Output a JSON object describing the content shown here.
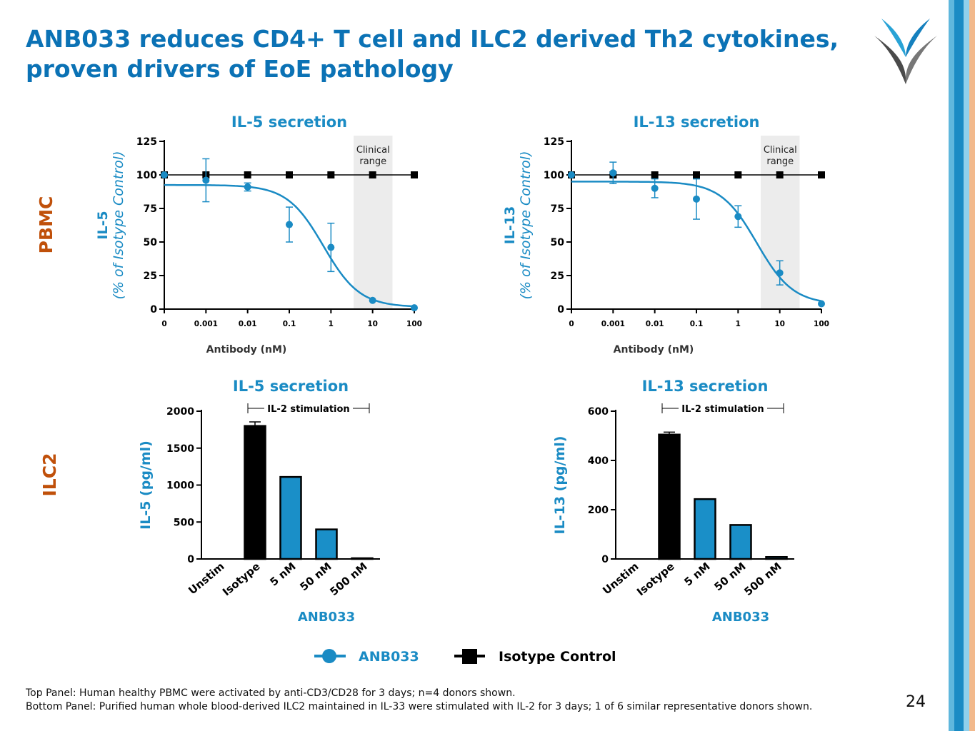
{
  "title_lines": [
    "ANB033 reduces CD4+ T cell and ILC2 derived Th2 cytokines,",
    "proven drivers of EoE pathology"
  ],
  "colors": {
    "title": "#0b72b5",
    "accent": "#1a8bc4",
    "row_label": "#c0500a",
    "bar_blue": "#1a8fc8",
    "black": "#000000",
    "clinical_band": "#ececec"
  },
  "row_labels": {
    "pbmc": "PBMC",
    "ilc2": "ILC2"
  },
  "chart_data": [
    {
      "type": "line",
      "title": "IL-5 secretion",
      "ylabel": "IL-5",
      "ylabel_sub": "(% of Isotype Control)",
      "xlabel": "Antibody (nM)",
      "x_tick_labels": [
        "0",
        "0.001",
        "0.01",
        "0.1",
        "1",
        "10",
        "100"
      ],
      "y_ticks": [
        0,
        25,
        50,
        75,
        100,
        125
      ],
      "ylim": [
        0,
        125
      ],
      "clinical_range": {
        "label_lines": [
          "Clinical",
          "range"
        ],
        "x_from": 3.5,
        "x_to": 30
      },
      "series": [
        {
          "name": "ANB033",
          "x": [
            0,
            0.001,
            0.01,
            0.1,
            1,
            10,
            100
          ],
          "y": [
            100,
            96,
            91,
            63,
            46,
            6.5,
            1
          ],
          "err": [
            0,
            16,
            3,
            13,
            18,
            0,
            0
          ]
        },
        {
          "name": "Isotype Control",
          "x": [
            0,
            0.001,
            0.01,
            0.1,
            1,
            10,
            100
          ],
          "y": [
            100,
            100,
            100,
            100,
            100,
            100,
            100
          ]
        }
      ],
      "fit": {
        "top": 92.5,
        "bottom": 1.5,
        "logIC50": -0.18,
        "hill": 1.0
      }
    },
    {
      "type": "line",
      "title": "IL-13 secretion",
      "ylabel": "IL-13",
      "ylabel_sub": "(% of Isotype Control)",
      "xlabel": "Antibody (nM)",
      "x_tick_labels": [
        "0",
        "0.001",
        "0.01",
        "0.1",
        "1",
        "10",
        "100"
      ],
      "y_ticks": [
        0,
        25,
        50,
        75,
        100,
        125
      ],
      "ylim": [
        0,
        125
      ],
      "clinical_range": {
        "label_lines": [
          "Clinical",
          "range"
        ],
        "x_from": 3.5,
        "x_to": 30
      },
      "series": [
        {
          "name": "ANB033",
          "x": [
            0,
            0.001,
            0.01,
            0.1,
            1,
            10,
            100
          ],
          "y": [
            100,
            101.5,
            90,
            82,
            69,
            27,
            4
          ],
          "err": [
            0,
            8,
            7,
            15,
            8,
            9,
            0
          ]
        },
        {
          "name": "Isotype Control",
          "x": [
            0,
            0.001,
            0.01,
            0.1,
            1,
            10,
            100
          ],
          "y": [
            100,
            100,
            100,
            100,
            100,
            100,
            100
          ]
        }
      ],
      "fit": {
        "top": 95,
        "bottom": 3.5,
        "logIC50": 0.45,
        "hill": 1.0
      }
    },
    {
      "type": "bar",
      "title": "IL-5 secretion",
      "ylabel": "IL-5 (pg/ml)",
      "categories": [
        "Unstim",
        "Isotype",
        "5 nM",
        "50 nM",
        "500 nM"
      ],
      "values": [
        0,
        1800,
        1110,
        400,
        10
      ],
      "err": [
        0,
        55,
        0,
        0,
        0
      ],
      "y_ticks": [
        0,
        500,
        1000,
        1500,
        2000
      ],
      "ylim": [
        0,
        2000
      ],
      "stimulation_label": "IL-2 stimulation",
      "group_label": "ANB033"
    },
    {
      "type": "bar",
      "title": "IL-13 secretion",
      "ylabel": "IL-13 (pg/ml)",
      "categories": [
        "Unstim",
        "Isotype",
        "5 nM",
        "50 nM",
        "500 nM"
      ],
      "values": [
        0,
        505,
        243,
        138,
        8
      ],
      "err": [
        0,
        10,
        0,
        0,
        0
      ],
      "y_ticks": [
        0,
        200,
        400,
        600
      ],
      "ylim": [
        0,
        600
      ],
      "stimulation_label": "IL-2 stimulation",
      "group_label": "ANB033"
    }
  ],
  "legend": [
    {
      "label": "ANB033",
      "marker": "circle"
    },
    {
      "label": "Isotype Control",
      "marker": "square"
    }
  ],
  "footnotes": [
    "Top Panel: Human healthy PBMC were activated by anti-CD3/CD28 for 3 days; n=4 donors shown.",
    "Bottom Panel: Purified human whole blood-derived ILC2 maintained in IL-33 were stimulated with IL-2 for 3 days; 1 of 6 similar representative donors shown."
  ],
  "page_number": "24"
}
